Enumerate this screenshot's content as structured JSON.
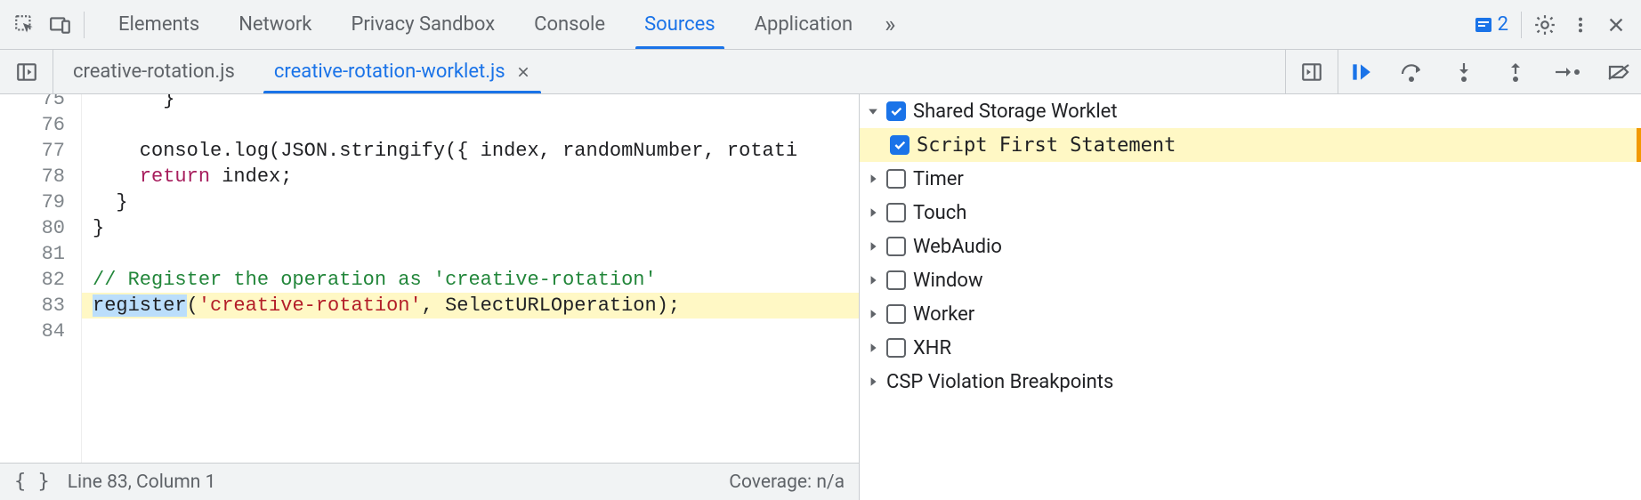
{
  "topTabs": {
    "items": [
      "Elements",
      "Network",
      "Privacy Sandbox",
      "Console",
      "Sources",
      "Application"
    ],
    "activeIndex": 4,
    "overflowGlyph": "»"
  },
  "issuesCount": "2",
  "fileTabs": {
    "items": [
      {
        "label": "creative-rotation.js",
        "active": false,
        "closable": false
      },
      {
        "label": "creative-rotation-worklet.js",
        "active": true,
        "closable": true
      }
    ]
  },
  "code": {
    "startLine": 75,
    "lines": [
      {
        "n": 75,
        "html": "      }"
      },
      {
        "n": 76,
        "html": ""
      },
      {
        "n": 77,
        "html": "    console.log(JSON.stringify({ index, randomNumber, rotati"
      },
      {
        "n": 78,
        "html": "    <span class=\"kw\">return</span> index;"
      },
      {
        "n": 79,
        "html": "  }"
      },
      {
        "n": 80,
        "html": "}"
      },
      {
        "n": 81,
        "html": ""
      },
      {
        "n": 82,
        "html": "<span class=\"cm\">// Register the operation as 'creative-rotation'</span>"
      },
      {
        "n": 83,
        "hl": true,
        "html": "<span class=\"sel\">register</span>(<span class=\"str\">'creative-rotation'</span>, SelectURLOperation);"
      },
      {
        "n": 84,
        "html": ""
      }
    ]
  },
  "status": {
    "bracesGlyph": "{ }",
    "position": "Line 83, Column 1",
    "coverage": "Coverage: n/a"
  },
  "breakpointTree": [
    {
      "type": "group",
      "expanded": true,
      "checked": true,
      "label": "Shared Storage Worklet",
      "labelMono": false
    },
    {
      "type": "child",
      "checked": true,
      "label": "Script First Statement",
      "hl": true,
      "labelMono": true
    },
    {
      "type": "group",
      "expanded": false,
      "checked": false,
      "label": "Timer"
    },
    {
      "type": "group",
      "expanded": false,
      "checked": false,
      "label": "Touch"
    },
    {
      "type": "group",
      "expanded": false,
      "checked": false,
      "label": "WebAudio"
    },
    {
      "type": "group",
      "expanded": false,
      "checked": false,
      "label": "Window"
    },
    {
      "type": "group",
      "expanded": false,
      "checked": false,
      "label": "Worker"
    },
    {
      "type": "group",
      "expanded": false,
      "checked": false,
      "label": "XHR"
    },
    {
      "type": "section",
      "label": "CSP Violation Breakpoints"
    }
  ],
  "colors": {
    "accent": "#1a73e8",
    "highlight": "#fff8c5",
    "hlBorder": "#f29900"
  }
}
